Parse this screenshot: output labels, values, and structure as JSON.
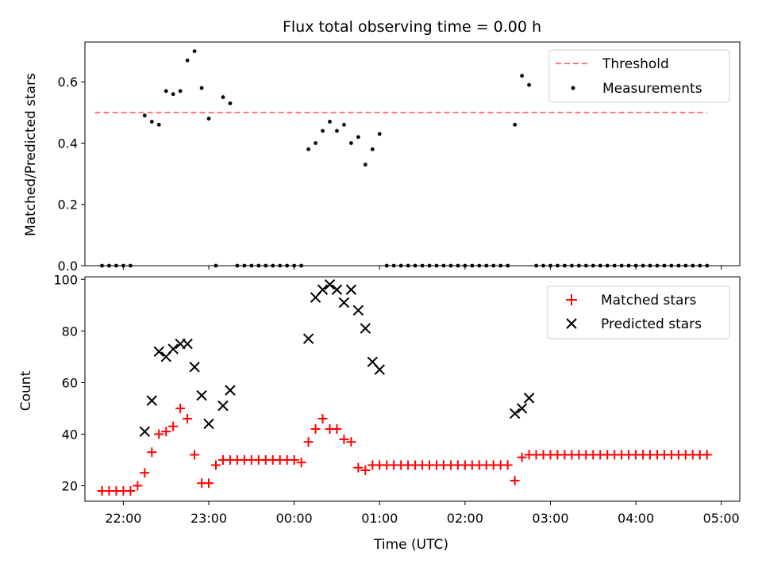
{
  "title": "Flux total observing time = 0.00 h",
  "colors": {
    "threshold": "#ff7777",
    "measurements": "#000000",
    "matched": "#ff0000",
    "predicted": "#000000"
  },
  "chart_data": [
    {
      "type": "scatter",
      "ylabel": "Matched/Predicted stars",
      "xlim": [
        "21:33",
        "05:13"
      ],
      "ylim": [
        0,
        0.73
      ],
      "yticks": [
        "0.0",
        "0.2",
        "0.4",
        "0.6"
      ],
      "legend": "top-right",
      "threshold": {
        "name": "Threshold",
        "value": 0.5,
        "x_range": [
          "21:40",
          "04:50"
        ]
      },
      "measurements_label": "Measurements",
      "measurements": [
        [
          "21:45",
          0
        ],
        [
          "21:50",
          0
        ],
        [
          "21:55",
          0
        ],
        [
          "22:00",
          0
        ],
        [
          "22:05",
          0
        ],
        [
          "22:15",
          0.49
        ],
        [
          "22:20",
          0.47
        ],
        [
          "22:25",
          0.46
        ],
        [
          "22:30",
          0.57
        ],
        [
          "22:35",
          0.56
        ],
        [
          "22:40",
          0.57
        ],
        [
          "22:45",
          0.67
        ],
        [
          "22:50",
          0.7
        ],
        [
          "22:55",
          0.58
        ],
        [
          "23:00",
          0.48
        ],
        [
          "23:05",
          0
        ],
        [
          "23:10",
          0.55
        ],
        [
          "23:15",
          0.53
        ],
        [
          "23:20",
          0
        ],
        [
          "23:25",
          0
        ],
        [
          "23:30",
          0
        ],
        [
          "23:35",
          0
        ],
        [
          "23:40",
          0
        ],
        [
          "23:45",
          0
        ],
        [
          "23:50",
          0
        ],
        [
          "23:55",
          0
        ],
        [
          "00:00",
          0
        ],
        [
          "00:05",
          0
        ],
        [
          "00:10",
          0.38
        ],
        [
          "00:15",
          0.4
        ],
        [
          "00:20",
          0.44
        ],
        [
          "00:25",
          0.47
        ],
        [
          "00:30",
          0.44
        ],
        [
          "00:35",
          0.46
        ],
        [
          "00:40",
          0.4
        ],
        [
          "00:45",
          0.42
        ],
        [
          "00:50",
          0.33
        ],
        [
          "00:55",
          0.38
        ],
        [
          "01:00",
          0.43
        ],
        [
          "01:05",
          0
        ],
        [
          "01:10",
          0
        ],
        [
          "01:15",
          0
        ],
        [
          "01:20",
          0
        ],
        [
          "01:25",
          0
        ],
        [
          "01:30",
          0
        ],
        [
          "01:35",
          0
        ],
        [
          "01:40",
          0
        ],
        [
          "01:45",
          0
        ],
        [
          "01:50",
          0
        ],
        [
          "01:55",
          0
        ],
        [
          "02:00",
          0
        ],
        [
          "02:05",
          0
        ],
        [
          "02:10",
          0
        ],
        [
          "02:15",
          0
        ],
        [
          "02:20",
          0
        ],
        [
          "02:25",
          0
        ],
        [
          "02:30",
          0
        ],
        [
          "02:35",
          0.46
        ],
        [
          "02:40",
          0.62
        ],
        [
          "02:45",
          0.59
        ],
        [
          "02:50",
          0
        ],
        [
          "02:55",
          0
        ],
        [
          "03:00",
          0
        ],
        [
          "03:05",
          0
        ],
        [
          "03:10",
          0
        ],
        [
          "03:15",
          0
        ],
        [
          "03:20",
          0
        ],
        [
          "03:25",
          0
        ],
        [
          "03:30",
          0
        ],
        [
          "03:35",
          0
        ],
        [
          "03:40",
          0
        ],
        [
          "03:45",
          0
        ],
        [
          "03:50",
          0
        ],
        [
          "03:55",
          0
        ],
        [
          "04:00",
          0
        ],
        [
          "04:05",
          0
        ],
        [
          "04:10",
          0
        ],
        [
          "04:15",
          0
        ],
        [
          "04:20",
          0
        ],
        [
          "04:25",
          0
        ],
        [
          "04:30",
          0
        ],
        [
          "04:35",
          0
        ],
        [
          "04:40",
          0
        ],
        [
          "04:45",
          0
        ],
        [
          "04:50",
          0
        ]
      ]
    },
    {
      "type": "scatter",
      "xlabel": "Time (UTC)",
      "ylabel": "Count",
      "xlim": [
        "21:33",
        "05:13"
      ],
      "ylim": [
        14,
        101
      ],
      "xticks": [
        "22:00",
        "23:00",
        "00:00",
        "01:00",
        "02:00",
        "03:00",
        "04:00",
        "05:00"
      ],
      "yticks": [
        "20",
        "40",
        "60",
        "80",
        "100"
      ],
      "legend": "top-right",
      "series": [
        {
          "name": "Matched stars",
          "points": [
            [
              "21:45",
              18
            ],
            [
              "21:50",
              18
            ],
            [
              "21:55",
              18
            ],
            [
              "22:00",
              18
            ],
            [
              "22:05",
              18
            ],
            [
              "22:10",
              20
            ],
            [
              "22:15",
              25
            ],
            [
              "22:20",
              33
            ],
            [
              "22:25",
              40
            ],
            [
              "22:30",
              41
            ],
            [
              "22:35",
              43
            ],
            [
              "22:40",
              50
            ],
            [
              "22:45",
              46
            ],
            [
              "22:50",
              32
            ],
            [
              "22:55",
              21
            ],
            [
              "23:00",
              21
            ],
            [
              "23:05",
              28
            ],
            [
              "23:10",
              30
            ],
            [
              "23:15",
              30
            ],
            [
              "23:20",
              30
            ],
            [
              "23:25",
              30
            ],
            [
              "23:30",
              30
            ],
            [
              "23:35",
              30
            ],
            [
              "23:40",
              30
            ],
            [
              "23:45",
              30
            ],
            [
              "23:50",
              30
            ],
            [
              "23:55",
              30
            ],
            [
              "00:00",
              30
            ],
            [
              "00:05",
              29
            ],
            [
              "00:10",
              37
            ],
            [
              "00:15",
              42
            ],
            [
              "00:20",
              46
            ],
            [
              "00:25",
              42
            ],
            [
              "00:30",
              42
            ],
            [
              "00:35",
              38
            ],
            [
              "00:40",
              37
            ],
            [
              "00:45",
              27
            ],
            [
              "00:50",
              26
            ],
            [
              "00:55",
              28
            ],
            [
              "01:00",
              28
            ],
            [
              "01:05",
              28
            ],
            [
              "01:10",
              28
            ],
            [
              "01:15",
              28
            ],
            [
              "01:20",
              28
            ],
            [
              "01:25",
              28
            ],
            [
              "01:30",
              28
            ],
            [
              "01:35",
              28
            ],
            [
              "01:40",
              28
            ],
            [
              "01:45",
              28
            ],
            [
              "01:50",
              28
            ],
            [
              "01:55",
              28
            ],
            [
              "02:00",
              28
            ],
            [
              "02:05",
              28
            ],
            [
              "02:10",
              28
            ],
            [
              "02:15",
              28
            ],
            [
              "02:20",
              28
            ],
            [
              "02:25",
              28
            ],
            [
              "02:30",
              28
            ],
            [
              "02:35",
              22
            ],
            [
              "02:40",
              31
            ],
            [
              "02:45",
              32
            ],
            [
              "02:50",
              32
            ],
            [
              "02:55",
              32
            ],
            [
              "03:00",
              32
            ],
            [
              "03:05",
              32
            ],
            [
              "03:10",
              32
            ],
            [
              "03:15",
              32
            ],
            [
              "03:20",
              32
            ],
            [
              "03:25",
              32
            ],
            [
              "03:30",
              32
            ],
            [
              "03:35",
              32
            ],
            [
              "03:40",
              32
            ],
            [
              "03:45",
              32
            ],
            [
              "03:50",
              32
            ],
            [
              "03:55",
              32
            ],
            [
              "04:00",
              32
            ],
            [
              "04:05",
              32
            ],
            [
              "04:10",
              32
            ],
            [
              "04:15",
              32
            ],
            [
              "04:20",
              32
            ],
            [
              "04:25",
              32
            ],
            [
              "04:30",
              32
            ],
            [
              "04:35",
              32
            ],
            [
              "04:40",
              32
            ],
            [
              "04:45",
              32
            ],
            [
              "04:50",
              32
            ]
          ]
        },
        {
          "name": "Predicted stars",
          "points": [
            [
              "22:15",
              41
            ],
            [
              "22:20",
              53
            ],
            [
              "22:25",
              72
            ],
            [
              "22:30",
              70
            ],
            [
              "22:35",
              73
            ],
            [
              "22:40",
              75
            ],
            [
              "22:45",
              75
            ],
            [
              "22:50",
              66
            ],
            [
              "22:55",
              55
            ],
            [
              "23:00",
              44
            ],
            [
              "23:10",
              51
            ],
            [
              "23:15",
              57
            ],
            [
              "00:10",
              77
            ],
            [
              "00:15",
              93
            ],
            [
              "00:20",
              96
            ],
            [
              "00:25",
              98
            ],
            [
              "00:30",
              96
            ],
            [
              "00:35",
              91
            ],
            [
              "00:40",
              96
            ],
            [
              "00:45",
              88
            ],
            [
              "00:50",
              81
            ],
            [
              "00:55",
              68
            ],
            [
              "01:00",
              65
            ],
            [
              "02:35",
              48
            ],
            [
              "02:40",
              50
            ],
            [
              "02:45",
              54
            ]
          ]
        }
      ]
    }
  ]
}
